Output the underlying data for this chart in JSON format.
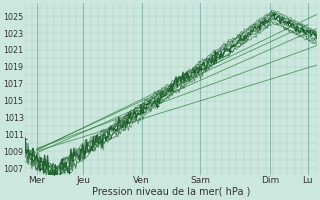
{
  "title": "Pression niveau de la mer( hPa )",
  "ylabel_values": [
    1007,
    1009,
    1011,
    1013,
    1015,
    1017,
    1019,
    1021,
    1023,
    1025
  ],
  "xlabels": [
    "Mer",
    "Jeu",
    "Ven",
    "Sam",
    "Dim",
    "Lu"
  ],
  "day_positions": [
    0.04,
    0.2,
    0.4,
    0.6,
    0.84,
    0.97
  ],
  "ylim": [
    1006.2,
    1026.5
  ],
  "bg_color": "#cce8de",
  "grid_color": "#a8c8c0",
  "line_dark": "#1a5c28",
  "line_mid": "#2a7a38"
}
